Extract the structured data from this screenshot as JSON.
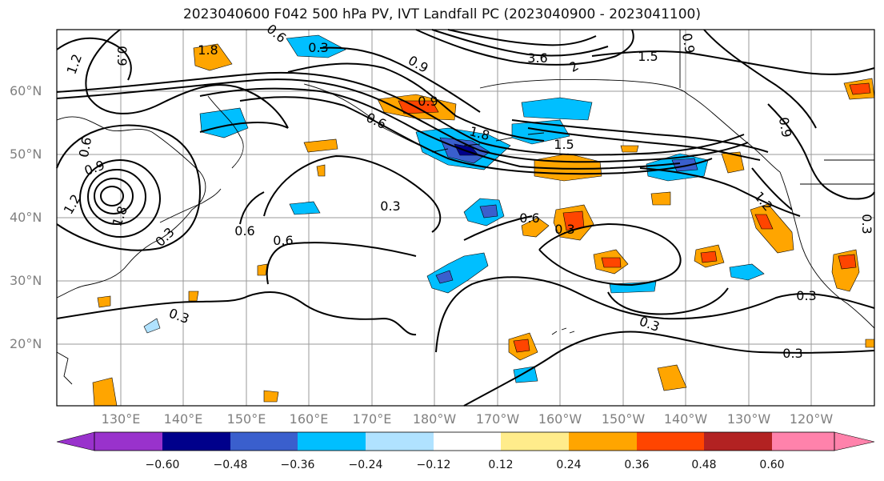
{
  "title": "2023040600 F042 500 hPa PV, IVT Landfall PC (2023040900 - 2023041100)",
  "latitude_labels": [
    "60°N",
    "50°N",
    "40°N",
    "30°N",
    "20°N"
  ],
  "longitude_labels": [
    "130°E",
    "140°E",
    "150°E",
    "160°E",
    "170°E",
    "180°W",
    "170°W",
    "160°W",
    "150°W",
    "140°W",
    "130°W",
    "120°W"
  ],
  "colorbar": {
    "ticks": [
      "−0.60",
      "−0.48",
      "−0.36",
      "−0.24",
      "−0.12",
      "0.12",
      "0.24",
      "0.36",
      "0.48",
      "0.60"
    ],
    "colors": [
      "#9932cc",
      "#00008b",
      "#3a5fcd",
      "#00bfff",
      "#b0e2ff",
      "#ffffff",
      "#ffec8b",
      "#ffa500",
      "#ff4500",
      "#b22222",
      "#ff82ab"
    ]
  },
  "contour_labels": [
    "1.2",
    "0.9",
    "1.8",
    "0.6",
    "0.3",
    "0.9",
    "3.6",
    "2",
    "1.5",
    "0.9",
    "0.9",
    "0.6",
    "1.8",
    "1.5",
    "0.9",
    "0.6",
    "0.3",
    "0.6",
    "0.6",
    "0.3",
    "0.3",
    "0.6",
    "0.3",
    "0.3",
    "0.3",
    "0.3",
    "0.9",
    "1.2",
    "1.8",
    "0.3",
    "1.2"
  ]
}
